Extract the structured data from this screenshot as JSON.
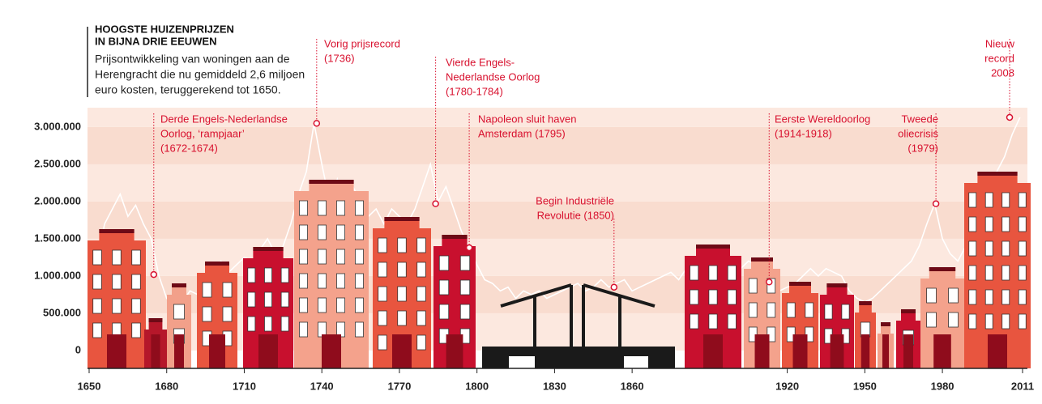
{
  "chart_data": {
    "type": "line",
    "title": [
      "HOOGSTE HUIZENPRIJZEN",
      "IN BIJNA DRIE EEUWEN"
    ],
    "subtitle": [
      "Prijsontwikkeling van woningen aan de",
      "Herengracht die nu gemiddeld 2,6 miljoen",
      "euro kosten, teruggerekend tot 1650."
    ],
    "color": "#ffffff",
    "x": [
      1650,
      1653,
      1656,
      1659,
      1662,
      1665,
      1668,
      1671,
      1674,
      1677,
      1680,
      1683,
      1686,
      1689,
      1692,
      1695,
      1698,
      1701,
      1704,
      1707,
      1710,
      1713,
      1716,
      1719,
      1722,
      1725,
      1728,
      1731,
      1734,
      1737,
      1740,
      1743,
      1746,
      1749,
      1752,
      1755,
      1758,
      1761,
      1764,
      1767,
      1770,
      1773,
      1776,
      1779,
      1782,
      1785,
      1788,
      1791,
      1794,
      1797,
      1800,
      1803,
      1806,
      1809,
      1812,
      1815,
      1818,
      1821,
      1824,
      1827,
      1830,
      1833,
      1836,
      1839,
      1842,
      1845,
      1848,
      1851,
      1854,
      1857,
      1860,
      1863,
      1866,
      1869,
      1872,
      1875,
      1878,
      1881,
      1884,
      1887,
      1890,
      1893,
      1896,
      1899,
      1902,
      1905,
      1908,
      1911,
      1914,
      1917,
      1920,
      1923,
      1926,
      1929,
      1932,
      1935,
      1938,
      1941,
      1944,
      1947,
      1950,
      1953,
      1956,
      1959,
      1962,
      1965,
      1968,
      1971,
      1974,
      1977,
      1980,
      1983,
      1986,
      1989,
      1992,
      1995,
      1998,
      2001,
      2004,
      2007,
      2010
    ],
    "values": [
      1400000,
      1200000,
      1700000,
      1900000,
      2100000,
      1800000,
      1950000,
      1700000,
      1500000,
      1000000,
      700000,
      600000,
      650000,
      800000,
      750000,
      900000,
      1000000,
      1200000,
      1050000,
      1150000,
      1250000,
      1200000,
      1350000,
      1500000,
      1300000,
      1400000,
      1700000,
      2100000,
      2400000,
      3050000,
      2500000,
      2000000,
      2300000,
      1900000,
      2200000,
      2000000,
      1800000,
      1900000,
      1700000,
      1900000,
      1800000,
      1700000,
      1900000,
      2200000,
      2500000,
      2000000,
      2200000,
      1900000,
      1600000,
      1380000,
      1150000,
      950000,
      900000,
      800000,
      850000,
      700000,
      800000,
      750000,
      800000,
      700000,
      750000,
      800000,
      850000,
      900000,
      800000,
      850000,
      950000,
      850000,
      900000,
      950000,
      800000,
      850000,
      900000,
      950000,
      1000000,
      1050000,
      950000,
      1100000,
      1200000,
      1300000,
      1200000,
      1100000,
      1050000,
      1000000,
      1100000,
      1200000,
      1150000,
      1000000,
      900000,
      800000,
      850000,
      900000,
      1000000,
      1100000,
      1000000,
      1100000,
      1050000,
      1000000,
      800000,
      700000,
      650000,
      700000,
      800000,
      900000,
      1000000,
      1100000,
      1200000,
      1400000,
      1700000,
      1970000,
      1500000,
      1300000,
      1200000,
      1400000,
      1700000,
      2000000,
      2200000,
      2400000,
      2600000,
      2900000,
      3130000
    ],
    "xlim": [
      1650,
      2011
    ],
    "xticks": [
      1650,
      1680,
      1710,
      1740,
      1770,
      1800,
      1830,
      1860,
      1920,
      1950,
      1980,
      2011
    ],
    "ylim": [
      -240000,
      3260000
    ],
    "yticks": [
      0,
      {
        "value": 500000,
        "label": "500.000"
      },
      {
        "value": 1000000,
        "label": "1.000.000"
      },
      {
        "value": 1500000,
        "label": "1.500.000"
      },
      {
        "value": 2000000,
        "label": "2.000.000"
      },
      {
        "value": 2500000,
        "label": "2.500.000"
      },
      {
        "value": 3000000,
        "label": "3.000.000"
      }
    ],
    "annotations": [
      {
        "lines": [
          "Derde Engels-Nederlandse",
          "Oorlog, ‘rampjaar’",
          "(1672-1674)"
        ],
        "x": 1675,
        "y": 1020000
      },
      {
        "lines": [
          "Vorig prijsrecord",
          "(1736)"
        ],
        "x": 1738,
        "y": 3050000
      },
      {
        "lines": [
          "Vierde Engels-",
          "Nederlandse Oorlog",
          "(1780-1784)"
        ],
        "x": 1784,
        "y": 1970000
      },
      {
        "lines": [
          "Napoleon sluit haven",
          "Amsterdam (1795)"
        ],
        "x": 1797,
        "y": 1380000
      },
      {
        "lines": [
          "Begin Industriële",
          "Revolutie (1850)"
        ],
        "x": 1853,
        "y": 850000
      },
      {
        "lines": [
          "Eerste Wereldoorlog",
          "(1914-1918)"
        ],
        "x": 1913,
        "y": 920000
      },
      {
        "lines": [
          "Tweede",
          "oliecrisis",
          "(1979)"
        ],
        "x": 1977.5,
        "y": 1970000
      },
      {
        "lines": [
          "Nieuw",
          "record",
          "2008"
        ],
        "x": 2006,
        "y": 3130000
      }
    ]
  }
}
